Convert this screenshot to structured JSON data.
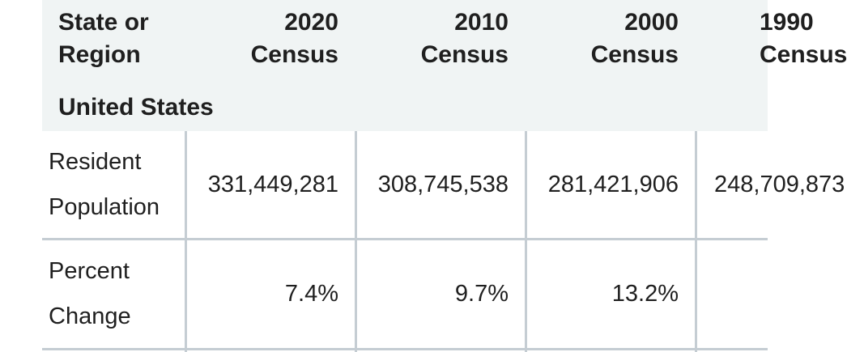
{
  "table": {
    "headers": [
      "State or Region",
      "2020 Census",
      "2010 Census",
      "2000 Census",
      "1990 Census"
    ],
    "header_lines": [
      [
        "State or",
        "Region"
      ],
      [
        "2020",
        "Census"
      ],
      [
        "2010",
        "Census"
      ],
      [
        "2000",
        "Census"
      ],
      [
        "1990",
        "Census"
      ]
    ],
    "region": "United States",
    "rows": [
      {
        "label_lines": [
          "Resident",
          "Population"
        ],
        "values": [
          "331,449,281",
          "308,745,538",
          "281,421,906",
          "248,709,873"
        ]
      },
      {
        "label_lines": [
          "Percent",
          "Change"
        ],
        "values": [
          "7.4%",
          "9.7%",
          "13.2%",
          ""
        ]
      }
    ]
  },
  "colors": {
    "header_background": "#f0f4f4",
    "grid_lines": "#c5cdd3",
    "text": "#1f1f1f"
  }
}
